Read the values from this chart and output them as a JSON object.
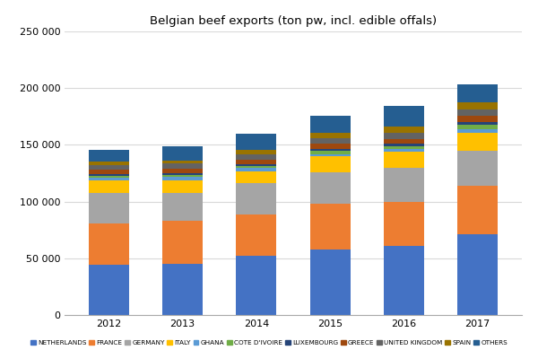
{
  "title": "Belgian beef exports (ton pw, incl. edible offals)",
  "years": [
    2012,
    2013,
    2014,
    2015,
    2016,
    2017
  ],
  "series": {
    "NETHERLANDS": [
      44000,
      45000,
      52000,
      58000,
      61000,
      71000
    ],
    "FRANCE": [
      37000,
      38000,
      37000,
      40000,
      39000,
      43000
    ],
    "GERMANY": [
      27000,
      25000,
      27000,
      28000,
      30000,
      31000
    ],
    "ITALY": [
      11000,
      11000,
      11000,
      14000,
      14000,
      16000
    ],
    "GHANA": [
      2000,
      2500,
      2500,
      2000,
      2500,
      3000
    ],
    "COTE D'IVOIRE": [
      1500,
      2000,
      2000,
      2500,
      2500,
      3500
    ],
    "LUXEMBOURG": [
      1500,
      1500,
      1500,
      2000,
      2000,
      3000
    ],
    "GREECE": [
      4000,
      4000,
      4000,
      4500,
      4500,
      5000
    ],
    "UNITED KINGDOM": [
      4500,
      4500,
      5000,
      5000,
      5500,
      6000
    ],
    "SPAIN": [
      3000,
      3000,
      4000,
      5000,
      5000,
      6000
    ],
    "OTHERS": [
      10000,
      12500,
      14000,
      15000,
      18000,
      16000
    ]
  },
  "colors": {
    "NETHERLANDS": "#4472C4",
    "FRANCE": "#ED7D31",
    "GERMANY": "#A5A5A5",
    "ITALY": "#FFC000",
    "GHANA": "#5B9BD5",
    "COTE D'IVOIRE": "#70AD47",
    "LUXEMBOURG": "#264478",
    "GREECE": "#9E480E",
    "UNITED KINGDOM": "#636363",
    "SPAIN": "#997300",
    "OTHERS": "#255E91"
  },
  "ylim": [
    0,
    250000
  ],
  "yticks": [
    0,
    50000,
    100000,
    150000,
    200000,
    250000
  ],
  "ytick_labels": [
    "0",
    "50 000",
    "100 000",
    "150 000",
    "200 000",
    "250 000"
  ],
  "background_color": "#FFFFFF",
  "grid_color": "#D9D9D9",
  "bar_width": 0.55
}
